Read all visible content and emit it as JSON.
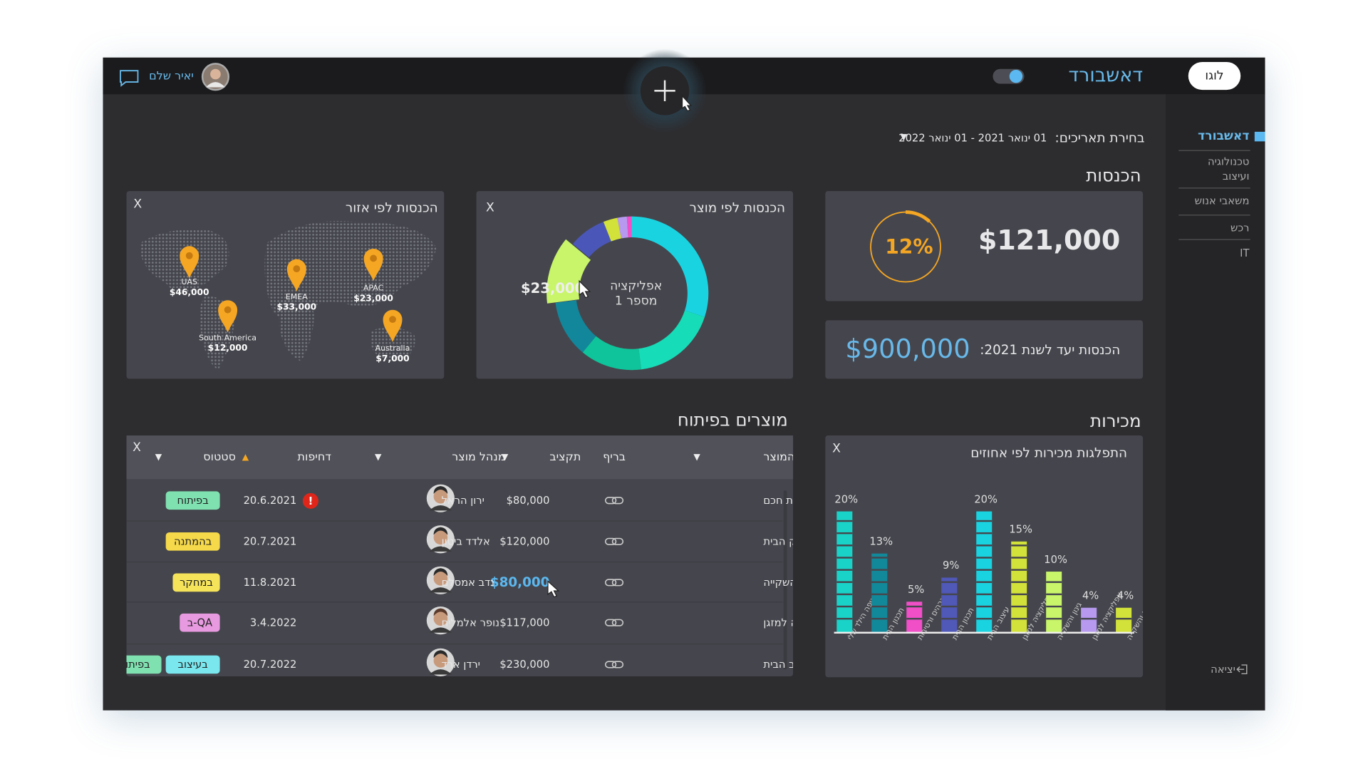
{
  "header": {
    "logo": "לוגו",
    "title": "דאשבורד",
    "user": "יאיר שלם"
  },
  "sidebar": {
    "items": [
      "דאשבורד",
      "טכנולוגיה ועיצוב",
      "משאבי אנוש",
      "רכש",
      "IT"
    ],
    "logout": "יציאה"
  },
  "date_filter": {
    "label": "בחירת תאריכים:",
    "range": "01 ינואר 2021 - 01 ינואר 2022",
    "arrow": "▼"
  },
  "revenue": {
    "title": "הכנסות",
    "total": "$121,000",
    "percent": 12,
    "percent_label": "12%",
    "target_label": "הכנסות יעד לשנת 2021:",
    "target": "$900,000"
  },
  "product_revenue": {
    "title": "הכנסות לפי מוצר",
    "close": "X",
    "center_label": [
      "אפליקציה",
      "מספר 1"
    ],
    "selected_value": "$23,000",
    "selected": 4,
    "segments": [
      {
        "value": 30,
        "color": "#1ad3e0"
      },
      {
        "value": 18,
        "color": "#17dcb8"
      },
      {
        "value": 13,
        "color": "#0fc49a"
      },
      {
        "value": 12,
        "color": "#12879c"
      },
      {
        "value": 13,
        "color": "#c8f56a"
      },
      {
        "value": 8,
        "color": "#4b57b8"
      },
      {
        "value": 3,
        "color": "#d3e23a"
      },
      {
        "value": 2,
        "color": "#b79af0"
      },
      {
        "value": 1,
        "color": "#f04fc8"
      }
    ]
  },
  "region_revenue": {
    "title": "הכנסות לפי אזור",
    "close": "X",
    "pins": [
      {
        "region": "UAS",
        "value": "$46,000"
      },
      {
        "region": "EMEA",
        "value": "$33,000"
      },
      {
        "region": "APAC",
        "value": "$23,000"
      },
      {
        "region": "South America",
        "value": "$12,000"
      },
      {
        "region": "Australia",
        "value": "$7,000"
      }
    ]
  },
  "sales": {
    "title": "מכירות",
    "chart_title": "התפלגות מכירות לפי אחוזים",
    "close": "X",
    "categories": [
      "איפה הילד שלי",
      "תכנון הבית",
      "מדידת גבהים ורטיבות",
      "תכנון הבית",
      "עיצוב הבית",
      "אפליקציה למזגן",
      "גינון והשקייה",
      "אפליקציה למזגן",
      "גינון והשקייה"
    ],
    "values": [
      20,
      13,
      5,
      9,
      20,
      15,
      10,
      4,
      4
    ],
    "value_labels": [
      "20%",
      "13%",
      "5%",
      "9%",
      "20%",
      "15%",
      "10%",
      "4%",
      "4%"
    ],
    "colors": [
      "#1ad3c8",
      "#12899a",
      "#f04fc8",
      "#5058b8",
      "#1ad3e0",
      "#d3e23a",
      "#c8f56a",
      "#b79af0",
      "#d3e23a"
    ]
  },
  "products_table": {
    "title": "מוצרים בפיתוח",
    "close": "X",
    "columns": [
      {
        "label": "שם המוצר",
        "sort": "▼"
      },
      {
        "label": "בריף"
      },
      {
        "label": "תקציב",
        "sort": "▼"
      },
      {
        "label": "מנהל מוצר",
        "sort": "▼"
      },
      {
        "label": "דחיפות",
        "sort": "▲"
      },
      {
        "label": "סטטוס",
        "sort": "▼"
      }
    ],
    "rows": [
      {
        "name": "בית חכם",
        "budget": "$80,000",
        "manager": "ירון הראל",
        "date": "20.6.2021",
        "alert": "!",
        "statuses": [
          {
            "label": "בפיתוח",
            "color": "#7fe0b0"
          }
        ]
      },
      {
        "name": "ניהול תקציב משק הבית",
        "budget": "$120,000",
        "manager": "אלדד ביטון",
        "date": "20.7.2021",
        "statuses": [
          {
            "label": "בהמתנה",
            "color": "#f5d94a"
          }
        ]
      },
      {
        "name": "גינון והשקייה",
        "budget": "$80,000",
        "manager": "נדב אמסלם",
        "date": "11.8.2021",
        "statuses": [
          {
            "label": "במחקר",
            "color": "#f5e35a"
          }
        ]
      },
      {
        "name": "אפליקציה למזגן",
        "budget": "$117,000",
        "manager": "נופר אלמליח",
        "date": "3.4.2022",
        "statuses": [
          {
            "label": "ב-QA",
            "color": "#e89ae0"
          }
        ]
      },
      {
        "name": "עיצוב הבית",
        "budget": "$230,000",
        "manager": "ירדן ארד",
        "date": "20.7.2022",
        "statuses": [
          {
            "label": "בעיצוב",
            "color": "#7ae6ee"
          },
          {
            "label": "בפיתוח",
            "color": "#7fe0b0"
          }
        ]
      }
    ]
  }
}
